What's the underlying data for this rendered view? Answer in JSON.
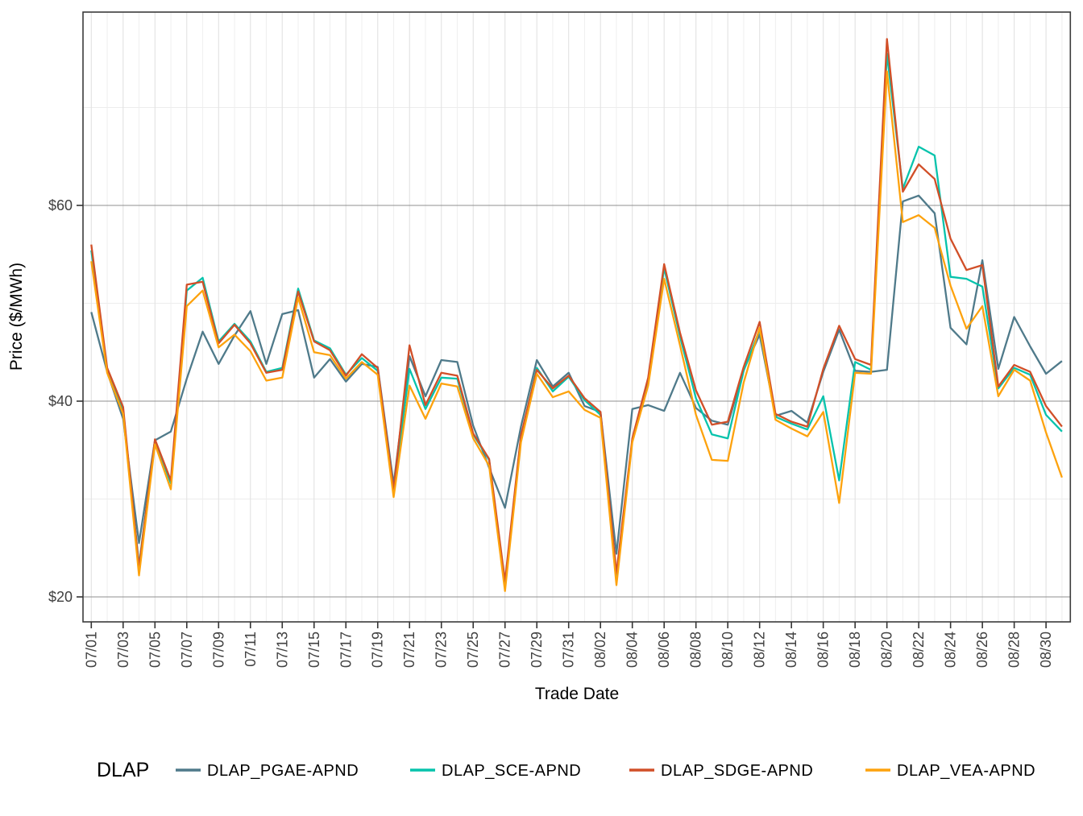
{
  "figure": {
    "y_axis": {
      "title": "Price ($/MWh)",
      "tick_labels": [
        "$20",
        "$40",
        "$60"
      ],
      "tick_values": [
        20,
        40,
        60
      ],
      "minor_values": [
        30,
        50,
        70
      ]
    },
    "x_axis": {
      "title": "Trade Date",
      "tick_labels": [
        "07/01",
        "07/03",
        "07/05",
        "07/07",
        "07/09",
        "07/11",
        "07/13",
        "07/15",
        "07/17",
        "07/19",
        "07/21",
        "07/23",
        "07/25",
        "07/27",
        "07/29",
        "07/31",
        "08/02",
        "08/04",
        "08/06",
        "08/08",
        "08/10",
        "08/12",
        "08/14",
        "08/16",
        "08/18",
        "08/20",
        "08/22",
        "08/24",
        "08/26",
        "08/28",
        "08/30"
      ]
    },
    "legend": {
      "title": "DLAP",
      "items": [
        {
          "name": "DLAP_PGAE-APND",
          "color": "#4F7A8A"
        },
        {
          "name": "DLAP_SCE-APND",
          "color": "#06C3AC"
        },
        {
          "name": "DLAP_SDGE-APND",
          "color": "#D14F28"
        },
        {
          "name": "DLAP_VEA-APND",
          "color": "#FDA20D"
        }
      ]
    }
  },
  "chart_data": {
    "type": "line",
    "title": "",
    "xlabel": "Trade Date",
    "ylabel": "Price ($/MWh)",
    "ylim": [
      17.4,
      79.8
    ],
    "grid": true,
    "legend_position": "bottom",
    "x": [
      "07/01",
      "07/02",
      "07/03",
      "07/04",
      "07/05",
      "07/06",
      "07/07",
      "07/08",
      "07/09",
      "07/10",
      "07/11",
      "07/12",
      "07/13",
      "07/14",
      "07/15",
      "07/16",
      "07/17",
      "07/18",
      "07/19",
      "07/20",
      "07/21",
      "07/22",
      "07/23",
      "07/24",
      "07/25",
      "07/26",
      "07/27",
      "07/28",
      "07/29",
      "07/30",
      "07/31",
      "08/01",
      "08/02",
      "08/03",
      "08/04",
      "08/05",
      "08/06",
      "08/07",
      "08/08",
      "08/09",
      "08/10",
      "08/11",
      "08/12",
      "08/13",
      "08/14",
      "08/15",
      "08/16",
      "08/17",
      "08/18",
      "08/19",
      "08/20",
      "08/21",
      "08/22",
      "08/23",
      "08/24",
      "08/25",
      "08/26",
      "08/27",
      "08/28",
      "08/29",
      "08/30",
      "08/31"
    ],
    "series": [
      {
        "name": "DLAP_PGAE-APND",
        "color": "#4F7A8A",
        "values": [
          49.1,
          43.0,
          38.2,
          25.5,
          36.0,
          36.9,
          42.3,
          47.1,
          43.8,
          46.7,
          49.2,
          43.8,
          48.9,
          49.3,
          42.4,
          44.3,
          42.0,
          43.8,
          43.5,
          31.5,
          44.6,
          40.5,
          44.2,
          44.0,
          37.5,
          33.2,
          29.1,
          37.4,
          44.2,
          41.5,
          42.9,
          39.5,
          38.9,
          24.4,
          39.2,
          39.6,
          39.0,
          42.9,
          39.3,
          38.0,
          37.6,
          43.2,
          46.8,
          38.5,
          39.0,
          37.8,
          43.0,
          47.3,
          43.1,
          43.0,
          43.2,
          60.4,
          61.0,
          59.2,
          47.5,
          45.8,
          54.4,
          43.3,
          48.6,
          45.6,
          42.8,
          44.1
        ]
      },
      {
        "name": "DLAP_SCE-APND",
        "color": "#06C3AC",
        "values": [
          55.4,
          43.1,
          39.0,
          23.2,
          36.0,
          31.6,
          51.3,
          52.6,
          46.1,
          47.9,
          46.1,
          43.0,
          43.4,
          51.5,
          46.2,
          45.4,
          42.7,
          44.4,
          43.1,
          30.7,
          43.3,
          39.2,
          42.4,
          42.3,
          36.6,
          34.0,
          21.2,
          36.3,
          43.4,
          41.0,
          42.5,
          40.1,
          38.6,
          22.0,
          36.0,
          42.2,
          53.6,
          46.6,
          40.3,
          36.6,
          36.2,
          43.1,
          47.3,
          38.4,
          37.7,
          37.1,
          40.5,
          31.9,
          44.0,
          43.2,
          75.5,
          61.7,
          66.0,
          65.1,
          52.7,
          52.5,
          51.7,
          41.3,
          43.4,
          42.7,
          38.6,
          36.9
        ]
      },
      {
        "name": "DLAP_SDGE-APND",
        "color": "#D14F28",
        "values": [
          56.0,
          43.4,
          39.4,
          23.0,
          36.1,
          31.9,
          51.9,
          52.2,
          45.9,
          47.8,
          45.9,
          42.9,
          43.2,
          51.2,
          46.1,
          45.2,
          42.6,
          44.8,
          43.4,
          30.9,
          45.7,
          39.6,
          42.9,
          42.6,
          36.7,
          34.1,
          21.6,
          36.5,
          43.2,
          41.3,
          42.6,
          40.3,
          38.9,
          22.4,
          36.2,
          42.4,
          54.0,
          47.0,
          41.1,
          37.6,
          37.9,
          43.5,
          48.1,
          38.7,
          37.9,
          37.4,
          43.3,
          47.7,
          44.3,
          43.7,
          77.0,
          61.4,
          64.2,
          62.7,
          56.6,
          53.4,
          53.9,
          41.5,
          43.7,
          43.0,
          39.5,
          37.4
        ]
      },
      {
        "name": "DLAP_VEA-APND",
        "color": "#FDA20D",
        "values": [
          54.3,
          42.9,
          38.7,
          22.2,
          35.6,
          31.0,
          49.7,
          51.3,
          45.5,
          46.8,
          45.1,
          42.1,
          42.4,
          50.6,
          45.0,
          44.7,
          42.3,
          44.0,
          42.7,
          30.2,
          41.6,
          38.2,
          41.8,
          41.5,
          36.2,
          33.4,
          20.6,
          35.8,
          42.8,
          40.4,
          41.0,
          39.1,
          38.3,
          21.2,
          35.8,
          41.6,
          52.5,
          45.7,
          38.6,
          34.0,
          33.9,
          41.9,
          47.5,
          38.1,
          37.2,
          36.4,
          38.9,
          29.6,
          42.9,
          42.8,
          73.7,
          58.3,
          59.0,
          57.7,
          51.8,
          47.4,
          49.7,
          40.5,
          43.2,
          42.1,
          36.8,
          32.2
        ]
      }
    ]
  }
}
